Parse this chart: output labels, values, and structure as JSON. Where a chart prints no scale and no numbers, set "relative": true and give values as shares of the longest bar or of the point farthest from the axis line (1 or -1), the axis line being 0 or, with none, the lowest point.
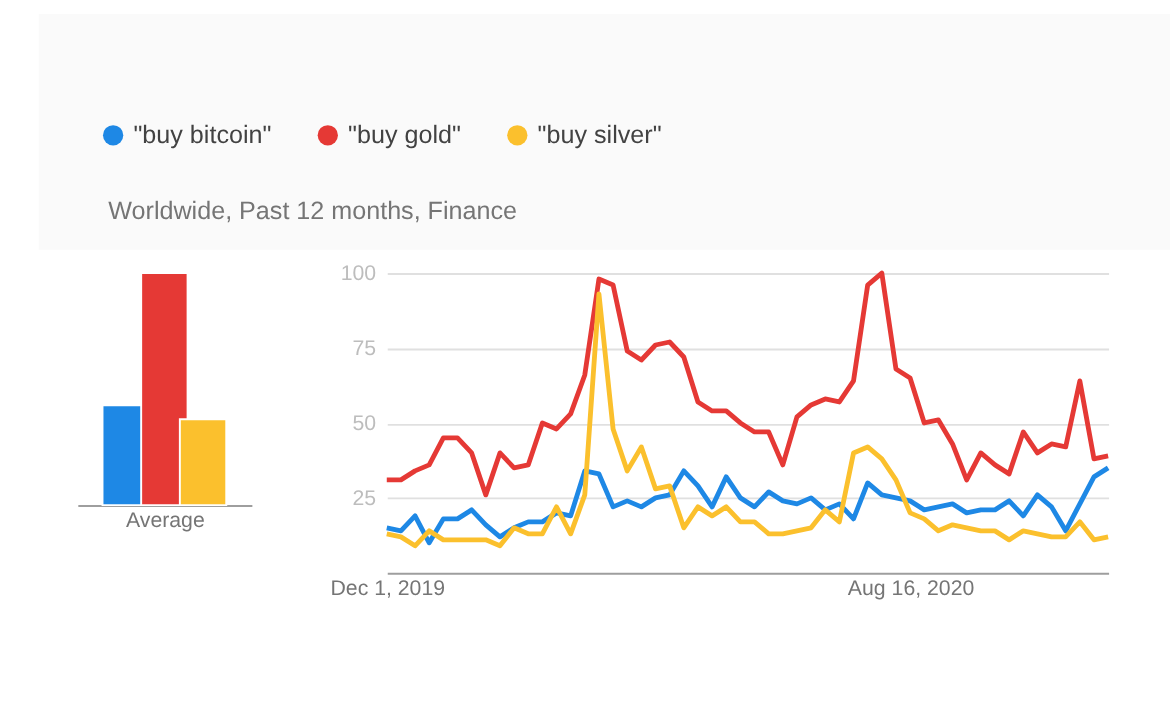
{
  "chart_data": [
    {
      "type": "bar",
      "xlabel": "Average",
      "categories": [
        null
      ],
      "relative": true,
      "series": [
        {
          "color": "#1e88e5",
          "values": [
            0.43
          ]
        },
        {
          "color": "#e53935",
          "values": [
            1
          ]
        },
        {
          "color": "#fbc02d",
          "values": [
            0.37
          ]
        }
      ]
    },
    {
      "type": "line",
      "subtitle": "Worldwide, Past 12 months, Finance",
      "legend": "top",
      "grid": "y",
      "marker": "none",
      "line_style": "solid",
      "xlim": [
        "2019-12-01",
        "2020-11-22"
      ],
      "xticks": [
        {
          "value": "2019-12-01",
          "label": "Dec 1, 2019"
        },
        {
          "value": "2020-08-16",
          "label": "Aug 16, 2020"
        }
      ],
      "ylim": [
        0,
        100
      ],
      "yticks": [
        25,
        50,
        75,
        100
      ],
      "x": [
        "2019-12-01",
        "2019-12-08",
        "2019-12-15",
        "2019-12-22",
        "2019-12-29",
        "2020-01-05",
        "2020-01-12",
        "2020-01-19",
        "2020-01-26",
        "2020-02-02",
        "2020-02-09",
        "2020-02-16",
        "2020-02-23",
        "2020-03-01",
        "2020-03-08",
        "2020-03-15",
        "2020-03-22",
        "2020-03-29",
        "2020-04-05",
        "2020-04-12",
        "2020-04-19",
        "2020-04-26",
        "2020-05-03",
        "2020-05-10",
        "2020-05-17",
        "2020-05-24",
        "2020-05-31",
        "2020-06-07",
        "2020-06-14",
        "2020-06-21",
        "2020-06-28",
        "2020-07-05",
        "2020-07-12",
        "2020-07-19",
        "2020-07-26",
        "2020-08-02",
        "2020-08-09",
        "2020-08-16",
        "2020-08-23",
        "2020-08-30",
        "2020-09-06",
        "2020-09-13",
        "2020-09-20",
        "2020-09-27",
        "2020-10-04",
        "2020-10-11",
        "2020-10-18",
        "2020-10-25",
        "2020-11-01",
        "2020-11-08",
        "2020-11-15",
        "2020-11-22"
      ],
      "series": [
        {
          "name": "\"buy bitcoin\"",
          "color": "#1e88e5",
          "values": [
            15,
            14,
            19,
            10,
            18,
            18,
            21,
            16,
            12,
            15,
            17,
            17,
            20,
            19,
            34,
            33,
            22,
            24,
            22,
            25,
            26,
            34,
            29,
            22,
            32,
            25,
            22,
            27,
            24,
            23,
            25,
            21,
            23,
            18,
            30,
            26,
            25,
            24,
            21,
            22,
            23,
            20,
            21,
            21,
            24,
            19,
            26,
            22,
            14,
            23,
            32,
            35
          ]
        },
        {
          "name": "\"buy gold\"",
          "color": "#e53935",
          "values": [
            31,
            31,
            34,
            36,
            45,
            45,
            40,
            26,
            40,
            35,
            36,
            50,
            48,
            53,
            66,
            98,
            96,
            74,
            71,
            76,
            77,
            72,
            57,
            54,
            54,
            50,
            47,
            47,
            36,
            52,
            56,
            58,
            57,
            64,
            96,
            100,
            68,
            65,
            50,
            51,
            43,
            31,
            40,
            36,
            33,
            47,
            40,
            43,
            42,
            64,
            38,
            39
          ]
        },
        {
          "name": "\"buy silver\"",
          "color": "#fbc02d",
          "values": [
            13,
            12,
            9,
            14,
            11,
            11,
            11,
            11,
            9,
            15,
            13,
            13,
            22,
            13,
            26,
            93,
            48,
            34,
            42,
            28,
            29,
            15,
            22,
            19,
            22,
            17,
            17,
            13,
            13,
            14,
            15,
            21,
            17,
            40,
            42,
            38,
            31,
            20,
            18,
            14,
            16,
            15,
            14,
            14,
            11,
            14,
            13,
            12,
            12,
            17,
            11,
            12
          ]
        }
      ]
    }
  ]
}
